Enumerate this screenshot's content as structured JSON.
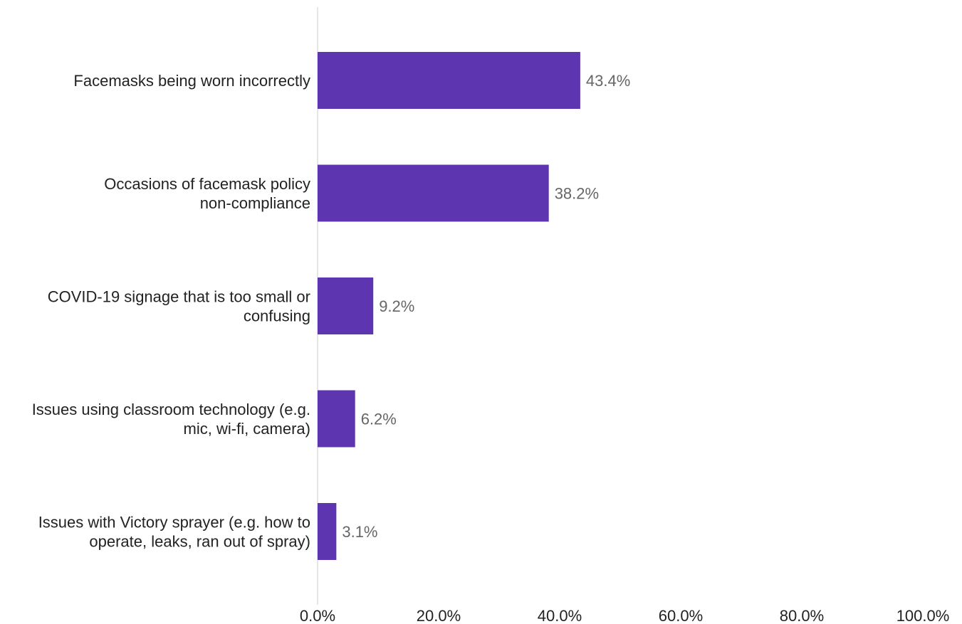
{
  "chart_data": {
    "type": "bar",
    "orientation": "horizontal",
    "title": "",
    "xlabel": "",
    "ylabel": "",
    "categories": [
      [
        "Facemasks being worn incorrectly"
      ],
      [
        "Occasions of facemask policy",
        "non-compliance"
      ],
      [
        "COVID-19 signage that is too small or",
        "confusing"
      ],
      [
        "Issues using classroom technology (e.g.",
        "mic, wi-fi, camera)"
      ],
      [
        "Issues with Victory sprayer (e.g. how to",
        "operate, leaks, ran out of spray)"
      ]
    ],
    "values": [
      43.4,
      38.2,
      9.2,
      6.2,
      3.1
    ],
    "value_labels": [
      "43.4%",
      "38.2%",
      "9.2%",
      "6.2%",
      "3.1%"
    ],
    "xlim": [
      0,
      100
    ],
    "ticks": [
      0,
      20,
      40,
      60,
      80,
      100
    ],
    "tick_labels": [
      "0.0%",
      "20.0%",
      "40.0%",
      "60.0%",
      "80.0%",
      "100.0%"
    ],
    "bar_color": "#5e35b1",
    "grid": false
  }
}
